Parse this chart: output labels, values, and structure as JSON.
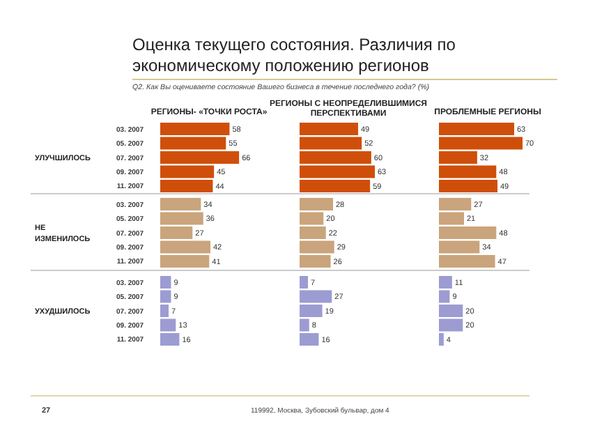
{
  "chart_data": [
    {
      "type": "other",
      "title": "Оценка текущего состояния. Различия по экономическому положению регионов",
      "subtitle": "Q2. Как Вы оцениваете состояние Вашего бизнеса в течение последнего года? (%)",
      "annotations": [
        "27",
        "119992, Москва, Зубовский бульвар, дом 4"
      ]
    },
    {
      "type": "bar",
      "orientation": "horizontal",
      "title": "РЕГИОНЫ- «ТОЧКИ РОСТА»",
      "ylabel": "УЛУЧШИЛОСЬ",
      "categories": [
        "03. 2007",
        "05. 2007",
        "07. 2007",
        "09. 2007",
        "11. 2007"
      ],
      "values": [
        58,
        55,
        66,
        45,
        44
      ],
      "color": "#cf4f0a",
      "data_labels": true
    },
    {
      "type": "bar",
      "orientation": "horizontal",
      "title": "РЕГИОНЫ  С НЕОПРЕДЕЛИВШИМИСЯ ПЕРСПЕКТИВАМИ",
      "categories": [
        null,
        null,
        null,
        null,
        null
      ],
      "values": [
        49,
        52,
        60,
        63,
        59
      ],
      "color": "#cf4f0a",
      "data_labels": true
    },
    {
      "type": "bar",
      "orientation": "horizontal",
      "title": "ПРОБЛЕМНЫЕ РЕГИОНЫ",
      "categories": [
        null,
        null,
        null,
        null,
        null
      ],
      "values": [
        63,
        70,
        32,
        48,
        49
      ],
      "color": "#cf4f0a",
      "data_labels": true
    },
    {
      "type": "bar",
      "orientation": "horizontal",
      "ylabel": "НЕ ИЗМЕНИЛОСЬ",
      "categories": [
        "03. 2007",
        "05. 2007",
        "07. 2007",
        "09. 2007",
        "11. 2007"
      ],
      "values": [
        34,
        36,
        27,
        42,
        41
      ],
      "color": "#c9a47c",
      "data_labels": true
    },
    {
      "type": "bar",
      "orientation": "horizontal",
      "categories": [
        null,
        null,
        null,
        null,
        null
      ],
      "values": [
        28,
        20,
        22,
        29,
        26
      ],
      "color": "#c9a47c",
      "data_labels": true
    },
    {
      "type": "bar",
      "orientation": "horizontal",
      "categories": [
        null,
        null,
        null,
        null,
        null
      ],
      "values": [
        27,
        21,
        48,
        34,
        47
      ],
      "color": "#c9a47c",
      "data_labels": true
    },
    {
      "type": "bar",
      "orientation": "horizontal",
      "ylabel": "УХУДШИЛОСЬ",
      "categories": [
        "03. 2007",
        "05. 2007",
        "07. 2007",
        "09. 2007",
        "11. 2007"
      ],
      "values": [
        9,
        9,
        7,
        13,
        16
      ],
      "color": "#9c9cd2",
      "data_labels": true
    },
    {
      "type": "bar",
      "orientation": "horizontal",
      "categories": [
        null,
        null,
        null,
        null,
        null
      ],
      "values": [
        7,
        27,
        19,
        8,
        16
      ],
      "color": "#9c9cd2",
      "data_labels": true
    },
    {
      "type": "bar",
      "orientation": "horizontal",
      "categories": [
        null,
        null,
        null,
        null,
        null
      ],
      "values": [
        11,
        9,
        20,
        20,
        4
      ],
      "color": "#9c9cd2",
      "data_labels": true
    }
  ]
}
